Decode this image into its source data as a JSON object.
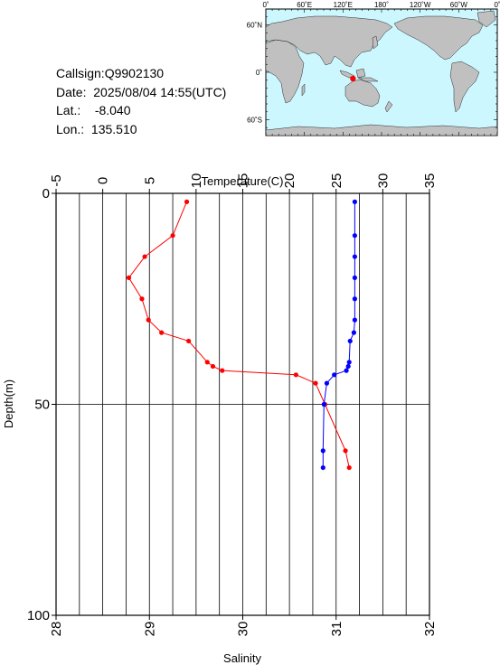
{
  "info": {
    "callsign_label": "Callsign:",
    "callsign": "Q9902130",
    "date_label": "Date:",
    "date": "2025/08/04 14:55(UTC)",
    "lat_label": "Lat.:",
    "lat": "-8.040",
    "lon_label": "Lon.:",
    "lon": "135.510"
  },
  "map": {
    "top_labels": [
      "0˚",
      "60˚E",
      "120˚E",
      "180˚",
      "120˚W",
      "60˚W",
      "0˚"
    ],
    "side_labels": [
      "60˚N",
      "0˚",
      "60˚S"
    ],
    "ocean_color": "#cdf7ff",
    "land_color": "#c0c0c0",
    "marker_color": "#ff0000",
    "marker_lat": -8.04,
    "marker_lon": 135.51
  },
  "chart_data": {
    "type": "line",
    "ylabel": "Depth(m)",
    "ylim": [
      0,
      100
    ],
    "y_ticks": [
      0,
      50,
      100
    ],
    "y_inverted": true,
    "top_axis": {
      "label": "Temperature(C)",
      "lim": [
        -5,
        35
      ],
      "ticks": [
        -5,
        0,
        5,
        10,
        15,
        20,
        25,
        30,
        35
      ]
    },
    "bottom_axis": {
      "label": "Salinity",
      "lim": [
        28,
        32
      ],
      "ticks": [
        28,
        29,
        30,
        31,
        32
      ]
    },
    "grid": "vertical lines every 2.5 temperature units plus a horizontal line at 50 m",
    "series": [
      {
        "axis": "top",
        "color": "#ff0000",
        "points": [
          [
            9.0,
            2
          ],
          [
            7.5,
            10
          ],
          [
            4.5,
            15
          ],
          [
            2.8,
            20
          ],
          [
            4.2,
            25
          ],
          [
            4.9,
            30
          ],
          [
            6.3,
            33
          ],
          [
            9.2,
            35
          ],
          [
            11.2,
            40
          ],
          [
            11.8,
            41
          ],
          [
            12.8,
            42
          ],
          [
            20.7,
            43
          ],
          [
            22.8,
            45
          ],
          [
            23.8,
            50
          ],
          [
            26.0,
            61
          ],
          [
            26.4,
            65
          ]
        ]
      },
      {
        "axis": "bottom",
        "color": "#0000ff",
        "points": [
          [
            31.2,
            2
          ],
          [
            31.2,
            10
          ],
          [
            31.2,
            15
          ],
          [
            31.2,
            20
          ],
          [
            31.2,
            25
          ],
          [
            31.2,
            30
          ],
          [
            31.19,
            33
          ],
          [
            31.15,
            35
          ],
          [
            31.14,
            40
          ],
          [
            31.13,
            41
          ],
          [
            31.11,
            42
          ],
          [
            30.98,
            43
          ],
          [
            30.9,
            45
          ],
          [
            30.87,
            50
          ],
          [
            30.86,
            61
          ],
          [
            30.86,
            65
          ]
        ]
      }
    ]
  }
}
